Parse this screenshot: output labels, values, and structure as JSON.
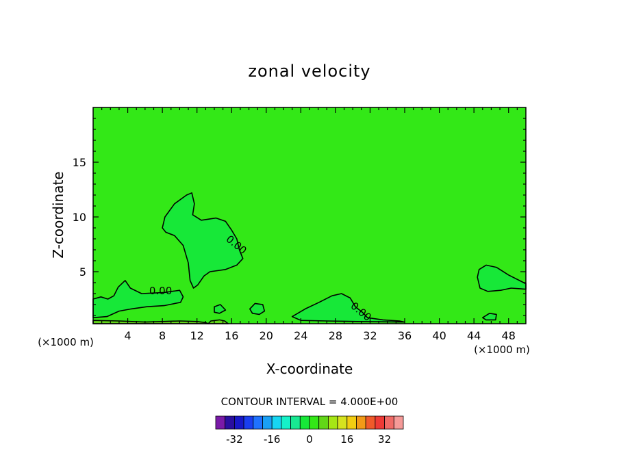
{
  "chart_data": {
    "type": "contour",
    "title": "zonal velocity",
    "xlabel": "X-coordinate",
    "ylabel": "Z-coordinate",
    "x_units": "(×1000 m)",
    "xlim": [
      0,
      50
    ],
    "ylim": [
      0.25,
      20
    ],
    "x_ticks": [
      4,
      8,
      12,
      16,
      20,
      24,
      28,
      32,
      36,
      40,
      44,
      48
    ],
    "y_ticks": [
      5,
      10,
      15
    ],
    "contour_label": "0.00",
    "contour_interval_text": "CONTOUR INTERVAL = 4.000E+00",
    "background_level": 0,
    "colors": {
      "field_zero": "#33e817",
      "field_positive": "#17e838",
      "field_negative_weak": "#62d618"
    },
    "colorbar": {
      "levels": [
        -36,
        -32,
        -28,
        -24,
        -20,
        -16,
        -12,
        -8,
        -4,
        0,
        4,
        8,
        12,
        16,
        20,
        24,
        28,
        32,
        36
      ],
      "tick_labels": [
        "-32",
        "-16",
        "0",
        "16",
        "32"
      ],
      "tick_values": [
        -32,
        -16,
        0,
        16,
        32
      ],
      "colors": [
        "#7a1aa8",
        "#2a0fa0",
        "#1818c8",
        "#1a3ef0",
        "#1f72ff",
        "#1aa0f5",
        "#17d6f2",
        "#15f2c8",
        "#18e892",
        "#17e838",
        "#33e817",
        "#62d618",
        "#a6e615",
        "#d6e31f",
        "#f2cd12",
        "#f29a17",
        "#f05a2a",
        "#ee3a36",
        "#f06a66",
        "#f59a98"
      ]
    },
    "regions": [
      {
        "sign": "positive",
        "points": [
          [
            8.0,
            9.0
          ],
          [
            8.3,
            10.0
          ],
          [
            9.4,
            11.2
          ],
          [
            10.8,
            12.0
          ],
          [
            11.4,
            12.2
          ],
          [
            11.7,
            11.2
          ],
          [
            11.5,
            10.2
          ],
          [
            12.5,
            9.7
          ],
          [
            14.2,
            9.9
          ],
          [
            15.3,
            9.6
          ],
          [
            16.0,
            8.8
          ],
          [
            16.6,
            8.0
          ],
          [
            16.9,
            7.0
          ],
          [
            17.3,
            6.2
          ],
          [
            16.6,
            5.6
          ],
          [
            15.3,
            5.2
          ],
          [
            13.5,
            5.0
          ],
          [
            12.8,
            4.6
          ],
          [
            12.1,
            3.8
          ],
          [
            11.6,
            3.5
          ],
          [
            11.2,
            4.2
          ],
          [
            11.0,
            5.8
          ],
          [
            10.4,
            7.4
          ],
          [
            9.4,
            8.3
          ],
          [
            8.4,
            8.6
          ]
        ]
      },
      {
        "sign": "positive",
        "points": [
          [
            0.0,
            2.5
          ],
          [
            0.9,
            2.7
          ],
          [
            1.7,
            2.5
          ],
          [
            2.4,
            2.8
          ],
          [
            2.9,
            3.6
          ],
          [
            3.7,
            4.2
          ],
          [
            4.3,
            3.5
          ],
          [
            5.6,
            3.0
          ],
          [
            8.2,
            3.1
          ],
          [
            10.0,
            3.3
          ],
          [
            10.4,
            2.7
          ],
          [
            10.1,
            2.2
          ],
          [
            8.2,
            1.9
          ],
          [
            6.2,
            1.8
          ],
          [
            4.4,
            1.6
          ],
          [
            3.0,
            1.4
          ],
          [
            1.6,
            0.9
          ],
          [
            0.0,
            0.8
          ]
        ]
      },
      {
        "sign": "positive",
        "points": [
          [
            23.0,
            0.9
          ],
          [
            24.5,
            1.6
          ],
          [
            26.1,
            2.2
          ],
          [
            27.6,
            2.8
          ],
          [
            28.7,
            3.0
          ],
          [
            29.7,
            2.6
          ],
          [
            30.3,
            1.8
          ],
          [
            31.1,
            1.3
          ],
          [
            31.7,
            0.8
          ],
          [
            33.5,
            0.6
          ],
          [
            35.4,
            0.5
          ],
          [
            36.0,
            0.4
          ],
          [
            30.5,
            0.45
          ],
          [
            27.0,
            0.5
          ],
          [
            24.0,
            0.55
          ]
        ]
      },
      {
        "sign": "positive",
        "points": [
          [
            44.4,
            4.5
          ],
          [
            44.6,
            5.2
          ],
          [
            45.4,
            5.6
          ],
          [
            46.6,
            5.4
          ],
          [
            48.0,
            4.7
          ],
          [
            50.0,
            3.9
          ],
          [
            50.0,
            3.4
          ],
          [
            48.3,
            3.5
          ],
          [
            47.1,
            3.3
          ],
          [
            45.6,
            3.2
          ],
          [
            44.7,
            3.5
          ]
        ]
      },
      {
        "sign": "positive",
        "points": [
          [
            14.0,
            1.8
          ],
          [
            14.7,
            2.0
          ],
          [
            15.3,
            1.5
          ],
          [
            14.6,
            1.2
          ],
          [
            14.0,
            1.3
          ]
        ]
      },
      {
        "sign": "positive",
        "points": [
          [
            18.1,
            1.6
          ],
          [
            18.7,
            2.1
          ],
          [
            19.6,
            2.0
          ],
          [
            19.8,
            1.4
          ],
          [
            19.2,
            1.1
          ],
          [
            18.4,
            1.2
          ]
        ]
      },
      {
        "sign": "positive",
        "points": [
          [
            45.0,
            0.8
          ],
          [
            45.8,
            1.2
          ],
          [
            46.6,
            1.1
          ],
          [
            46.5,
            0.6
          ],
          [
            45.4,
            0.6
          ]
        ]
      },
      {
        "sign": "negative",
        "points": [
          [
            0.0,
            0.25
          ],
          [
            0.0,
            0.55
          ],
          [
            3.0,
            0.5
          ],
          [
            6.0,
            0.4
          ],
          [
            8.0,
            0.45
          ],
          [
            10.0,
            0.5
          ],
          [
            12.0,
            0.45
          ],
          [
            13.0,
            0.35
          ],
          [
            13.3,
            0.25
          ]
        ]
      },
      {
        "sign": "negative",
        "points": [
          [
            13.3,
            0.25
          ],
          [
            13.6,
            0.5
          ],
          [
            14.6,
            0.6
          ],
          [
            15.2,
            0.5
          ],
          [
            15.6,
            0.25
          ]
        ]
      }
    ],
    "contour_label_positions": [
      {
        "x": 7.8,
        "y": 3.3
      },
      {
        "x": 16.6,
        "y": 7.5
      },
      {
        "x": 31.0,
        "y": 1.4
      }
    ]
  }
}
